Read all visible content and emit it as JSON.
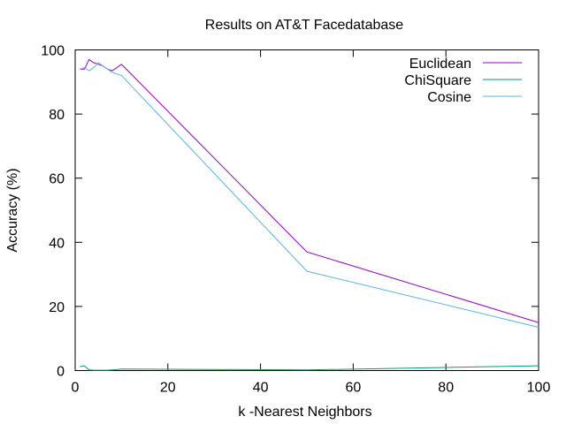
{
  "chart_data": {
    "type": "line",
    "title": "Results on AT&T Facedatabase",
    "xlabel": "k -Nearest Neighbors",
    "ylabel": "Accuracy (%)",
    "xlim": [
      0,
      100
    ],
    "ylim": [
      0,
      100
    ],
    "xticks": [
      "0",
      "20",
      "40",
      "60",
      "80",
      "100"
    ],
    "yticks": [
      "0",
      "20",
      "40",
      "60",
      "80",
      "100"
    ],
    "grid": false,
    "legend_position": "top-right",
    "series": [
      {
        "name": "Euclidean",
        "color": "#9400d3",
        "x": [
          1,
          2,
          3,
          4,
          5,
          6,
          7,
          8,
          9,
          10,
          50,
          100
        ],
        "y": [
          94,
          94,
          97,
          96,
          95.5,
          95,
          94,
          93.5,
          94.5,
          95.5,
          37,
          15
        ]
      },
      {
        "name": "ChiSquare",
        "color": "#009e73",
        "x": [
          1,
          2,
          3,
          4,
          5,
          6,
          7,
          8,
          9,
          10,
          50,
          100
        ],
        "y": [
          1.2,
          1.5,
          0.2,
          0.1,
          0.1,
          0.1,
          0.1,
          0.2,
          0.3,
          0.5,
          0.2,
          1.5
        ]
      },
      {
        "name": "Cosine",
        "color": "#56b4e9",
        "x": [
          1,
          2,
          3,
          4,
          5,
          6,
          7,
          8,
          9,
          10,
          50,
          100
        ],
        "y": [
          94,
          94.5,
          93.5,
          94.5,
          96,
          95,
          94,
          93,
          92.5,
          92,
          31,
          13.5
        ]
      }
    ]
  }
}
